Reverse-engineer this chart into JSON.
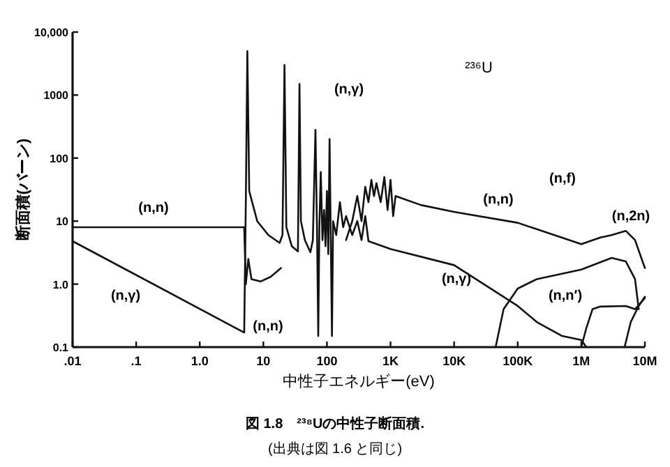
{
  "chart_data": {
    "type": "line",
    "title": "図 1.8　²³⁸Uの中性子断面積.",
    "xlabel": "中性子エネルギー(eV)",
    "ylabel": "断面積(バーン)",
    "log": "xy",
    "xlim": [
      0.01,
      10000000
    ],
    "ylim": [
      0.1,
      10000
    ],
    "xticks": [
      {
        "value": 0.01,
        "label": ".01"
      },
      {
        "value": 0.1,
        "label": ".1"
      },
      {
        "value": 1,
        "label": "1.0"
      },
      10,
      100,
      {
        "value": 1000,
        "label": "1K"
      },
      {
        "value": 10000,
        "label": "10K"
      },
      {
        "value": 100000,
        "label": "100K"
      },
      {
        "value": 1000000,
        "label": "1M"
      },
      {
        "value": 10000000,
        "label": "10M"
      }
    ],
    "yticks": [
      {
        "value": 0.1,
        "label": "0.1"
      },
      {
        "value": 1,
        "label": "1.0"
      },
      10,
      100,
      1000,
      {
        "value": 10000,
        "label": "10,000"
      }
    ],
    "series": [
      {
        "color": "#111111",
        "x": [
          0.01,
          5,
          5.3,
          5.8,
          6.5,
          9,
          13,
          19,
          null,
          200,
          250,
          300,
          350,
          400,
          450,
          500,
          550,
          600,
          700,
          800,
          900,
          1000,
          1100,
          1200,
          3000,
          10000,
          100000,
          1000000,
          2000000,
          3000000,
          5000000,
          7000000,
          10000000
        ],
        "values": [
          8,
          8,
          1,
          2.5,
          1.2,
          1.1,
          1.3,
          1.8,
          null,
          5,
          10,
          25,
          10,
          35,
          20,
          45,
          25,
          40,
          20,
          50,
          15,
          45,
          12,
          25,
          18,
          14,
          9.4,
          4.3,
          5.5,
          6,
          7,
          5,
          1.8
        ]
      },
      {
        "color": "#111111",
        "x": [
          0.01,
          5,
          5.3,
          5.6,
          6,
          8,
          12,
          18,
          20,
          21.5,
          23,
          28,
          35,
          37,
          39,
          45,
          55,
          60,
          66,
          70,
          73,
          76,
          80,
          85,
          90,
          95,
          100,
          105,
          110,
          115,
          120,
          125,
          140,
          160,
          180,
          200,
          250,
          300,
          350,
          400,
          450,
          1000,
          10000,
          100000,
          200000,
          500000,
          1000000,
          1200000
        ],
        "values": [
          4.8,
          0.17,
          20,
          5000,
          30,
          10,
          6,
          4.5,
          6,
          3000,
          8,
          4,
          3.3,
          1500,
          10,
          5,
          3.2,
          5,
          280,
          6,
          0.15,
          8,
          60,
          5,
          15,
          4,
          30,
          3,
          200,
          5,
          0.15,
          10,
          6,
          20,
          8,
          12,
          6,
          10,
          5,
          12,
          4.8,
          3.6,
          2,
          0.45,
          0.25,
          0.15,
          0.13,
          0.1
        ]
      },
      {
        "color": "#111111",
        "x": [
          1000000,
          1200000,
          1500000,
          2000000,
          5000000,
          7000000,
          10000000
        ],
        "values": [
          0.1,
          0.2,
          0.4,
          0.44,
          0.45,
          0.4,
          0.6
        ]
      },
      {
        "color": "#111111",
        "x": [
          45000,
          60000,
          100000,
          200000,
          1000000,
          3000000,
          5000000,
          7000000,
          8000000
        ],
        "values": [
          0.1,
          0.4,
          0.85,
          1.2,
          1.7,
          2.6,
          2.3,
          1.2,
          0.4
        ]
      },
      {
        "color": "#111111",
        "x": [
          4800000,
          6000000,
          8000000,
          10000000
        ],
        "values": [
          0.1,
          0.25,
          0.45,
          0.63
        ]
      }
    ],
    "annotations": [
      "(n,n)",
      "(n,γ)",
      "(n,γ)",
      "(n,n)",
      "(n,n)",
      "(n,γ)",
      "(n,f)",
      "(n,n′)",
      "(n,2n)",
      "²³⁶U",
      "(出典は図 1.6 と同じ)"
    ]
  }
}
